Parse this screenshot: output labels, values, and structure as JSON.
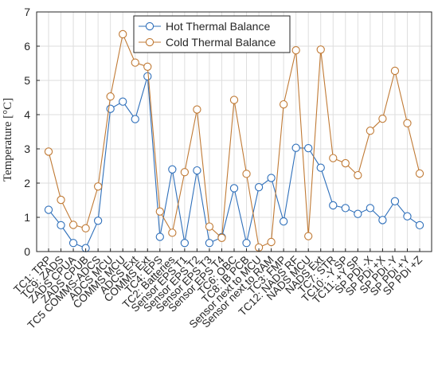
{
  "chart_data": {
    "type": "line",
    "title": "",
    "xlabel": "",
    "ylabel": "Temperature [°C]",
    "ylim": [
      0,
      7
    ],
    "yticks": [
      0,
      1,
      2,
      3,
      4,
      5,
      6,
      7
    ],
    "grid": true,
    "legend_position": "top-center",
    "categories": [
      "TC1: TRP",
      "TC9: ZADS",
      "ZADS CPUA",
      "ZADS CPUB",
      "TC5 COMMS-ADCS",
      "ADCS MCU",
      "COMMS MCU",
      "ADCS Ext",
      "COMMS Ext",
      "TC4: EPS",
      "TC2: Batteries",
      "Sensor EPS T1",
      "Sensor EPS T2",
      "Sensor EPS T3",
      "Sensor EPS T4",
      "TC6: OBC",
      "TC8: IB PCB",
      "Sensor next to MCU",
      "Sensor next to RAM",
      "TC3: FMP",
      "TC12: NADS RF",
      "NADS MCU",
      "NADS Ext",
      "TC7: STR",
      "TC10: -Y SP",
      "TC11: +Y SP",
      "SP PDi -X",
      "SP PDi +X",
      "SP PDi -Y",
      "SP PDi +Y",
      "SP PDi +Z"
    ],
    "series": [
      {
        "name": "Hot Thermal Balance",
        "color": "#2e6fba",
        "values": [
          1.22,
          0.77,
          0.25,
          0.1,
          0.9,
          4.17,
          4.38,
          3.87,
          5.12,
          0.43,
          2.4,
          0.25,
          2.37,
          0.25,
          0.42,
          1.85,
          0.25,
          1.88,
          2.15,
          0.88,
          3.03,
          3.02,
          2.45,
          1.35,
          1.27,
          1.1,
          1.27,
          0.92,
          1.47,
          1.03,
          0.77
        ]
      },
      {
        "name": "Cold Thermal Balance",
        "color": "#c07a35",
        "values": [
          2.92,
          1.51,
          0.78,
          0.68,
          1.9,
          4.53,
          6.35,
          5.52,
          5.4,
          1.17,
          0.55,
          2.32,
          4.15,
          0.73,
          0.4,
          4.43,
          2.27,
          0.12,
          0.28,
          4.3,
          5.88,
          0.45,
          5.9,
          2.73,
          2.58,
          2.23,
          3.53,
          3.88,
          5.28,
          3.75,
          2.28
        ]
      }
    ]
  }
}
